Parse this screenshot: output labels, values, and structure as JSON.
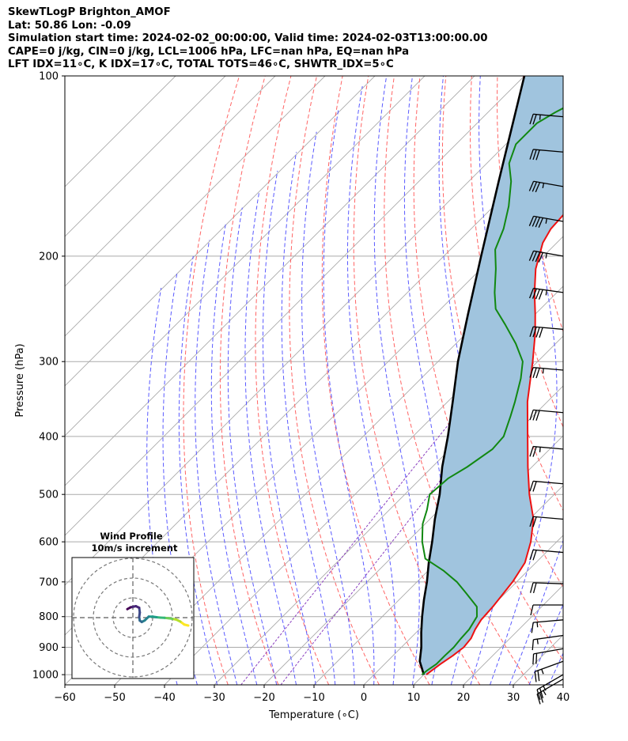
{
  "header": {
    "line1": "SkewTLogP Brighton_AMOF",
    "line2": "Lat: 50.86   Lon: -0.09",
    "line3": "Simulation start time: 2024-02-02_00:00:00, Valid time: 2024-02-03T13:00:00.00",
    "line4": "CAPE=0 j/kg, CIN=0 j/kg, LCL=1006 hPa, LFC=nan hPa, EQ=nan hPa",
    "line5": "LFT IDX=11∘C, K IDX=17∘C, TOTAL TOTS=46∘C, SHWTR_IDX=5∘C"
  },
  "chart_data": [
    {
      "type": "line",
      "chart_kind": "skew-T log-P diagram",
      "xlabel": "Temperature (∘C)",
      "ylabel": "Pressure (hPa)",
      "xlim": [
        -60,
        40
      ],
      "ylim": [
        1040,
        100
      ],
      "y_scale": "log",
      "skew_degrees": 45,
      "x_ticks": [
        -60,
        -50,
        -40,
        -30,
        -20,
        -10,
        0,
        10,
        20,
        30,
        40
      ],
      "y_ticks": [
        1000,
        900,
        800,
        700,
        600,
        500,
        400,
        300,
        200,
        100
      ],
      "grid": true,
      "background_lines": {
        "isotherms_color": "#aaaaaa",
        "dry_adiabats_color": "#ff6464",
        "moist_adiabats_color": "#5a5aff",
        "mixing_ratio_color": "#8a3fbf"
      },
      "fill": {
        "between": [
          "temperature",
          "parcel"
        ],
        "color": "#a0c4de"
      },
      "series": [
        {
          "key": "temperature",
          "color": "#ee1111",
          "points": [
            [
              1000,
              10.5
            ],
            [
              960,
              11.2
            ],
            [
              930,
              12.0
            ],
            [
              900,
              12.5
            ],
            [
              870,
              12.2
            ],
            [
              840,
              11.2
            ],
            [
              810,
              10.5
            ],
            [
              770,
              10.2
            ],
            [
              700,
              9.2
            ],
            [
              650,
              7.8
            ],
            [
              600,
              4.8
            ],
            [
              550,
              0.8
            ],
            [
              500,
              -5.0
            ],
            [
              450,
              -10.8
            ],
            [
              400,
              -17.0
            ],
            [
              350,
              -24.0
            ],
            [
              300,
              -31.0
            ],
            [
              270,
              -36.0
            ],
            [
              250,
              -40.0
            ],
            [
              230,
              -44.5
            ],
            [
              210,
              -49.0
            ],
            [
              190,
              -52.8
            ],
            [
              180,
              -54.0
            ],
            [
              170,
              -54.3
            ],
            [
              160,
              -54.0
            ],
            [
              150,
              -53.0
            ],
            [
              140,
              -51.8
            ],
            [
              130,
              -50.2
            ],
            [
              120,
              -48.0
            ],
            [
              113,
              -46.6
            ],
            [
              107,
              -46.4
            ],
            [
              100,
              -46.0
            ]
          ]
        },
        {
          "key": "dewpoint",
          "color": "#118811",
          "points": [
            [
              1000,
              9.6
            ],
            [
              985,
              9.8
            ],
            [
              960,
              10.4
            ],
            [
              930,
              10.4
            ],
            [
              900,
              10.5
            ],
            [
              870,
              10.2
            ],
            [
              840,
              10.0
            ],
            [
              800,
              9.0
            ],
            [
              770,
              7.0
            ],
            [
              730,
              2.0
            ],
            [
              700,
              -2.0
            ],
            [
              670,
              -7.0
            ],
            [
              640,
              -13.0
            ],
            [
              600,
              -17.0
            ],
            [
              560,
              -20.5
            ],
            [
              530,
              -22.5
            ],
            [
              500,
              -25.0
            ],
            [
              470,
              -24.5
            ],
            [
              450,
              -23.0
            ],
            [
              420,
              -21.5
            ],
            [
              400,
              -21.8
            ],
            [
              370,
              -24.5
            ],
            [
              350,
              -26.5
            ],
            [
              320,
              -30.0
            ],
            [
              300,
              -33.0
            ],
            [
              280,
              -38.0
            ],
            [
              260,
              -44.0
            ],
            [
              245,
              -49.0
            ],
            [
              230,
              -52.5
            ],
            [
              210,
              -57.0
            ],
            [
              195,
              -61.0
            ],
            [
              180,
              -63.5
            ],
            [
              165,
              -67.0
            ],
            [
              150,
              -71.5
            ],
            [
              140,
              -75.5
            ],
            [
              130,
              -78.0
            ],
            [
              120,
              -78.0
            ],
            [
              115,
              -76.5
            ],
            [
              108,
              -73.5
            ],
            [
              100,
              -69.5
            ]
          ]
        },
        {
          "key": "parcel",
          "color": "#000000",
          "points": [
            [
              1000,
              10.0
            ],
            [
              950,
              6.5
            ],
            [
              900,
              4.0
            ],
            [
              850,
              1.0
            ],
            [
              800,
              -2.0
            ],
            [
              750,
              -5.0
            ],
            [
              700,
              -8.0
            ],
            [
              650,
              -11.5
            ],
            [
              600,
              -15.0
            ],
            [
              550,
              -19.0
            ],
            [
              500,
              -23.0
            ],
            [
              450,
              -28.0
            ],
            [
              400,
              -33.0
            ],
            [
              350,
              -39.0
            ],
            [
              300,
              -46.0
            ],
            [
              250,
              -53.5
            ],
            [
              200,
              -62.5
            ],
            [
              150,
              -74.0
            ],
            [
              100,
              -90.0
            ]
          ]
        }
      ],
      "wind_barbs": {
        "color": "#000000",
        "levels": [
          {
            "p": 1017,
            "speed_kt": 25,
            "direction_deg": 240
          },
          {
            "p": 1000,
            "speed_kt": 25,
            "direction_deg": 240
          },
          {
            "p": 950,
            "speed_kt": 25,
            "direction_deg": 250
          },
          {
            "p": 905,
            "speed_kt": 20,
            "direction_deg": 260
          },
          {
            "p": 860,
            "speed_kt": 15,
            "direction_deg": 262
          },
          {
            "p": 810,
            "speed_kt": 15,
            "direction_deg": 265
          },
          {
            "p": 765,
            "speed_kt": 10,
            "direction_deg": 270
          },
          {
            "p": 705,
            "speed_kt": 20,
            "direction_deg": 272
          },
          {
            "p": 625,
            "speed_kt": 20,
            "direction_deg": 275
          },
          {
            "p": 550,
            "speed_kt": 20,
            "direction_deg": 275
          },
          {
            "p": 480,
            "speed_kt": 20,
            "direction_deg": 275
          },
          {
            "p": 420,
            "speed_kt": 25,
            "direction_deg": 275
          },
          {
            "p": 365,
            "speed_kt": 30,
            "direction_deg": 275
          },
          {
            "p": 310,
            "speed_kt": 35,
            "direction_deg": 275
          },
          {
            "p": 265,
            "speed_kt": 40,
            "direction_deg": 275
          },
          {
            "p": 230,
            "speed_kt": 45,
            "direction_deg": 278
          },
          {
            "p": 200,
            "speed_kt": 45,
            "direction_deg": 280
          },
          {
            "p": 175,
            "speed_kt": 45,
            "direction_deg": 280
          },
          {
            "p": 153,
            "speed_kt": 35,
            "direction_deg": 280
          },
          {
            "p": 134,
            "speed_kt": 30,
            "direction_deg": 275
          },
          {
            "p": 117,
            "speed_kt": 25,
            "direction_deg": 275
          }
        ]
      }
    },
    {
      "type": "hodograph",
      "title": "Wind Profile",
      "subtitle": "10m/s increment",
      "ring_increment_ms": 10,
      "rings_ms": [
        10,
        20,
        30
      ],
      "colormap": "viridis",
      "u_v_points_ms": [
        [
          28,
          -4
        ],
        [
          26,
          -3.5
        ],
        [
          24,
          -2
        ],
        [
          22,
          -1
        ],
        [
          20,
          -0.6
        ],
        [
          18,
          -0.3
        ],
        [
          16,
          -0.1
        ],
        [
          14,
          0
        ],
        [
          12,
          0.2
        ],
        [
          10,
          0.5
        ],
        [
          8,
          0.5
        ],
        [
          6,
          -1.4
        ],
        [
          4.5,
          -2.2
        ],
        [
          3.5,
          -1.5
        ],
        [
          3.2,
          0.3
        ],
        [
          3.5,
          2.6
        ],
        [
          3.2,
          5
        ],
        [
          1.5,
          5.8
        ],
        [
          -1.2,
          5.2
        ],
        [
          -2.8,
          4.3
        ]
      ]
    }
  ]
}
